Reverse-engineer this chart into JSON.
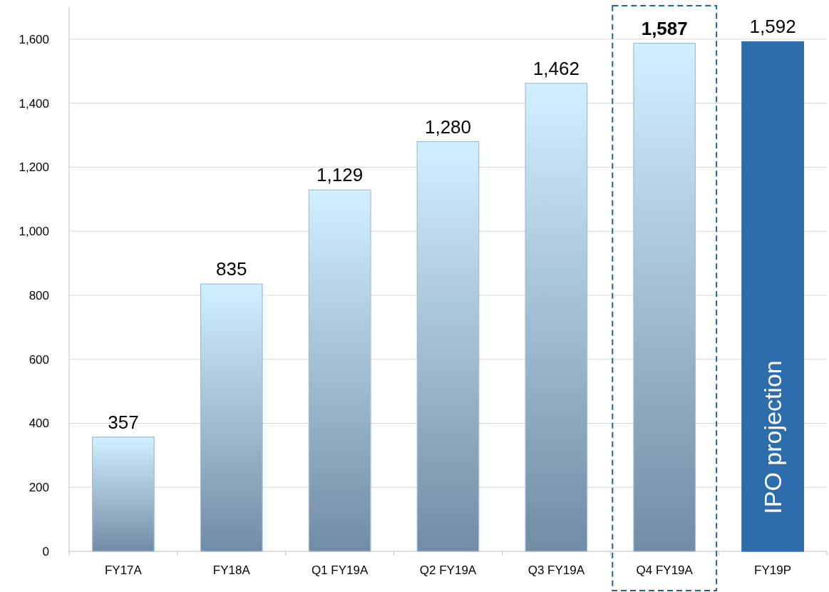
{
  "chart_data": {
    "type": "bar",
    "categories": [
      "FY17A",
      "FY18A",
      "Q1 FY19A",
      "Q2 FY19A",
      "Q3 FY19A",
      "Q4 FY19A",
      "FY19P"
    ],
    "values": [
      357,
      835,
      1129,
      1280,
      1462,
      1587,
      1592
    ],
    "colors": [
      "#a1bed2",
      "#a1bed2",
      "#a1bed2",
      "#a1bed2",
      "#a1bed2",
      "#a1bed2",
      "#2e6dab"
    ],
    "value_labels": [
      "357",
      "835",
      "1,129",
      "1,280",
      "1,462",
      "1,587",
      "1,592"
    ],
    "ylim": [
      0,
      1700
    ],
    "yticks": [
      0,
      {
        "value": 200,
        "label": "200"
      },
      {
        "value": 400,
        "label": "400"
      },
      {
        "value": 600,
        "label": "600"
      },
      {
        "value": 800,
        "label": "800"
      },
      {
        "value": 1000,
        "label": "1,000"
      },
      {
        "value": 1200,
        "label": "1,200"
      },
      {
        "value": 1400,
        "label": "1,400"
      },
      {
        "value": 1600,
        "label": "1,600"
      }
    ],
    "grid": "y",
    "annotations": [
      "IPO projection"
    ]
  }
}
